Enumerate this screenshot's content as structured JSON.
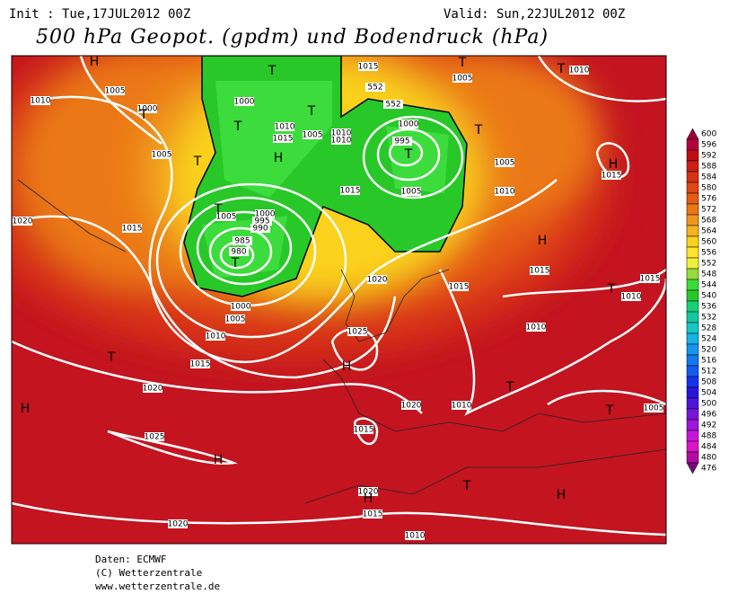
{
  "header": {
    "init": "Init : Tue,17JUL2012 00Z",
    "valid": "Valid: Sun,22JUL2012 00Z",
    "title": "500 hPa Geopot. (gpdm) und Bodendruck (hPa)"
  },
  "legend": {
    "levels": [
      600,
      596,
      592,
      588,
      584,
      580,
      576,
      572,
      568,
      564,
      560,
      556,
      552,
      548,
      544,
      540,
      536,
      532,
      528,
      524,
      520,
      516,
      512,
      508,
      504,
      500,
      496,
      492,
      488,
      484,
      480,
      476
    ],
    "colors": [
      "#a0003c",
      "#b4003c",
      "#c00a14",
      "#cd1e14",
      "#d73214",
      "#e14614",
      "#e65a14",
      "#eb7814",
      "#f0961e",
      "#f5b41e",
      "#fad21e",
      "#ffe628",
      "#f0f03c",
      "#96dc3c",
      "#3cdc3c",
      "#28c828",
      "#14d278",
      "#14c8a0",
      "#14c8c8",
      "#14b4e6",
      "#1496f0",
      "#1478f0",
      "#145af0",
      "#1432f0",
      "#2814dc",
      "#5014dc",
      "#7814dc",
      "#a014dc",
      "#c814dc",
      "#dc14c8",
      "#b40aa0",
      "#780a78"
    ]
  },
  "map": {
    "isobar_labels": [
      1015,
      1005,
      1010,
      1005,
      1010,
      1000,
      1000,
      1010,
      1015,
      1005,
      1010,
      1010,
      1000,
      995,
      1005,
      1005,
      1015,
      1005,
      1010,
      1020,
      1015,
      1005,
      1000,
      995,
      990,
      985,
      980,
      1015,
      1015,
      1015,
      1020,
      1015,
      1010,
      1000,
      1005,
      1010,
      1025,
      1015,
      1010,
      1020,
      1020,
      1010,
      1005,
      1025,
      1015,
      1020,
      1015,
      1020,
      1010,
      552,
      552
    ],
    "centers": [
      "H",
      "T",
      "T",
      "T",
      "T",
      "T",
      "T",
      "H",
      "T",
      "T",
      "H",
      "T",
      "T",
      "H",
      "T",
      "H",
      "T",
      "T",
      "T",
      "H",
      "H",
      "H",
      "T",
      "H",
      "T"
    ]
  },
  "footer": {
    "lines": [
      "Daten: ECMWF",
      "(C) Wetterzentrale",
      "www.wetterzentrale.de"
    ]
  }
}
